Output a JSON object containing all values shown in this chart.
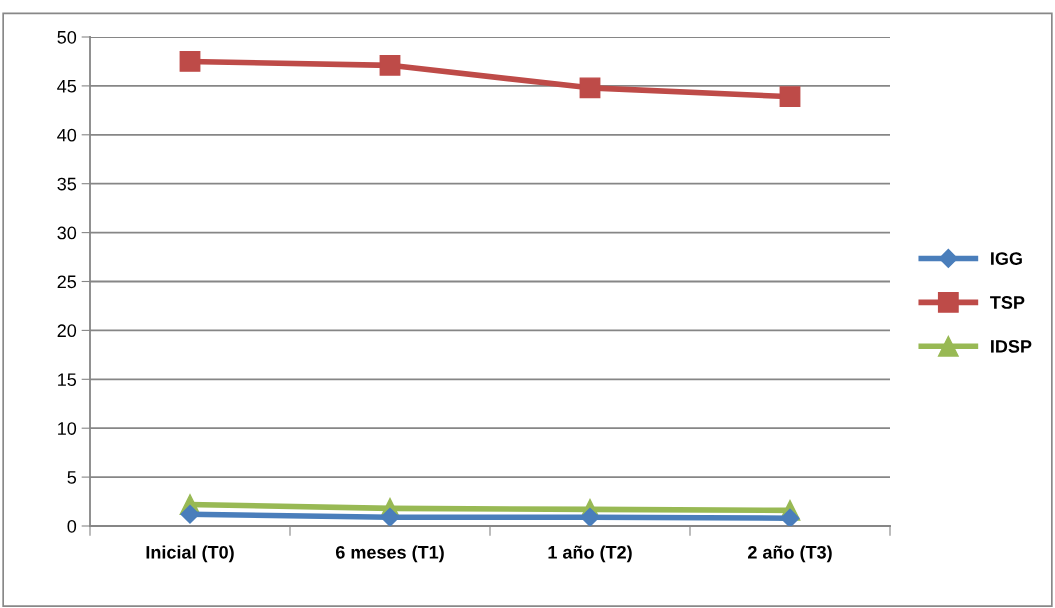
{
  "chart_data": {
    "type": "line",
    "categories": [
      "Inicial (T0)",
      "6 meses (T1)",
      "1 año (T2)",
      "2 año (T3)"
    ],
    "series": [
      {
        "name": "IGG",
        "color": "#4a7ebb",
        "marker": "diamond",
        "values": [
          1.2,
          0.9,
          0.9,
          0.8
        ]
      },
      {
        "name": "TSP",
        "color": "#be4b48",
        "marker": "square",
        "values": [
          47.5,
          47.1,
          44.8,
          43.9
        ]
      },
      {
        "name": "IDSP",
        "color": "#98b954",
        "marker": "triangle",
        "values": [
          2.2,
          1.8,
          1.7,
          1.6
        ]
      }
    ],
    "ylim": [
      0,
      50
    ],
    "yticks": [
      0,
      5,
      10,
      15,
      20,
      25,
      30,
      35,
      40,
      45,
      50
    ],
    "grid": "y",
    "legend": "right"
  }
}
